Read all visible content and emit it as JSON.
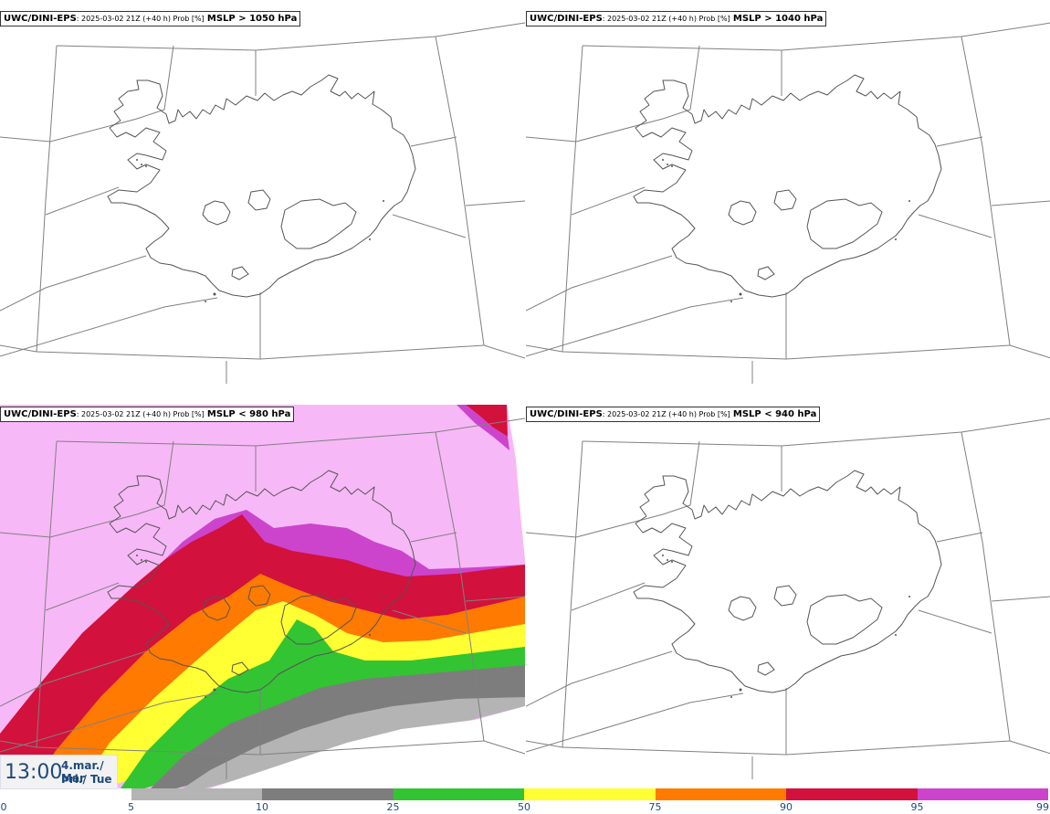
{
  "panels": [
    {
      "id": "tl",
      "model": "UWC/DINI-EPS",
      "info": ": 2025-03-02 21Z (+40 h) Prob [%]",
      "threshold": "MSLP > 1050 hPa",
      "filled": false
    },
    {
      "id": "tr",
      "model": "UWC/DINI-EPS",
      "info": ": 2025-03-02 21Z (+40 h) Prob [%]",
      "threshold": "MSLP > 1040 hPa",
      "filled": false
    },
    {
      "id": "bl",
      "model": "UWC/DINI-EPS",
      "info": ": 2025-03-02 21Z (+40 h) Prob [%]",
      "threshold": "MSLP < 980 hPa",
      "filled": true
    },
    {
      "id": "br",
      "model": "UWC/DINI-EPS",
      "info": ": 2025-03-02 21Z (+40 h) Prob [%]",
      "threshold": "MSLP < 940 hPa",
      "filled": false
    }
  ],
  "timebox": {
    "hour": "13:00",
    "date": "4.mar./ Mar",
    "day": "Þri./ Tue"
  },
  "legend": {
    "ticks": [
      "0",
      "5",
      "10",
      "25",
      "50",
      "75",
      "90",
      "95",
      "99"
    ],
    "colors": [
      "#ffffff",
      "#b4b4b4",
      "#7d7d7d",
      "#33c433",
      "#ffff33",
      "#ff7a00",
      "#d2113c",
      "#cc44cc",
      "#f7b8f7"
    ]
  },
  "colors": {
    "coast": "#555555",
    "grid": "#808080",
    "c5": "#b4b4b4",
    "c10": "#7d7d7d",
    "c25": "#33c433",
    "c50": "#ffff33",
    "c75": "#ff7a00",
    "c90": "#d2113c",
    "c95": "#cc44cc",
    "c99": "#f7b8f7"
  }
}
